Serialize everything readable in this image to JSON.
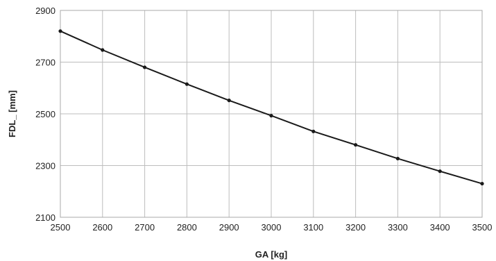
{
  "chart_data": {
    "type": "line",
    "title": "",
    "xlabel": "GA [kg]",
    "ylabel": "FDL_ [mm]",
    "xlim": [
      2500,
      3500
    ],
    "ylim": [
      2100,
      2900
    ],
    "x_ticks": [
      "2500",
      "2600",
      "2700",
      "2800",
      "2900",
      "3000",
      "3100",
      "3200",
      "3300",
      "3400",
      "3500"
    ],
    "y_ticks": [
      "2100",
      "2300",
      "2500",
      "2700",
      "2900"
    ],
    "grid": true,
    "legend": "none",
    "x": [
      2500,
      2600,
      2700,
      2800,
      2900,
      3000,
      3100,
      3200,
      3300,
      3400,
      3500
    ],
    "series": [
      {
        "values": [
          2820,
          2747,
          2680,
          2615,
          2552,
          2493,
          2432,
          2380,
          2327,
          2278,
          2230
        ],
        "color": "#1a1a1a"
      }
    ]
  }
}
